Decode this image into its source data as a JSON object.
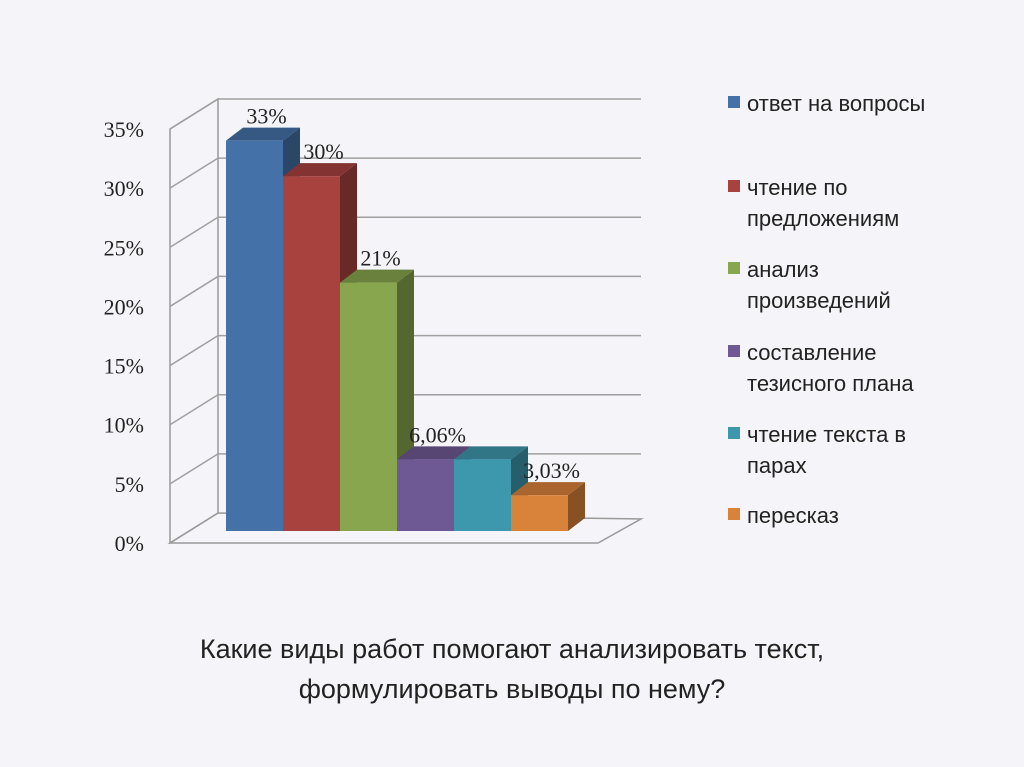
{
  "caption": {
    "line1": "Какие виды работ помогают анализировать текст,",
    "line2": "формулировать выводы по нему?"
  },
  "chart_data": {
    "type": "bar",
    "three_d": true,
    "ylim": [
      0,
      35
    ],
    "yticks": [
      0,
      5,
      10,
      15,
      20,
      25,
      30,
      35
    ],
    "ytick_labels": [
      "0%",
      "5%",
      "10%",
      "15%",
      "20%",
      "25%",
      "30%",
      "35%"
    ],
    "grid": true,
    "legend_position": "right",
    "series": [
      {
        "name": "ответ на вопросы",
        "value": 33,
        "label": "33%",
        "color": "#4472a8",
        "legend_lines": [
          "ответ на вопросы"
        ]
      },
      {
        "name": "чтение по предложениям",
        "value": 30,
        "label": "30%",
        "color": "#a8423f",
        "legend_lines": [
          "чтение по",
          "предложениям"
        ]
      },
      {
        "name": "анализ произведений",
        "value": 21,
        "label": "21%",
        "color": "#87a64e",
        "legend_lines": [
          "анализ",
          "произведений"
        ]
      },
      {
        "name": "составление тезисного плана",
        "value": 6.06,
        "label": "6,06%",
        "color": "#6f5994",
        "legend_lines": [
          "составление",
          "тезисного плана"
        ]
      },
      {
        "name": "чтение текста в парах",
        "value": 6.06,
        "label": "",
        "color": "#3d97ad",
        "legend_lines": [
          "чтение текста в",
          "парах"
        ]
      },
      {
        "name": "пересказ",
        "value": 3.03,
        "label": "3,03%",
        "color": "#d9823a",
        "legend_lines": [
          "пересказ"
        ]
      }
    ]
  }
}
